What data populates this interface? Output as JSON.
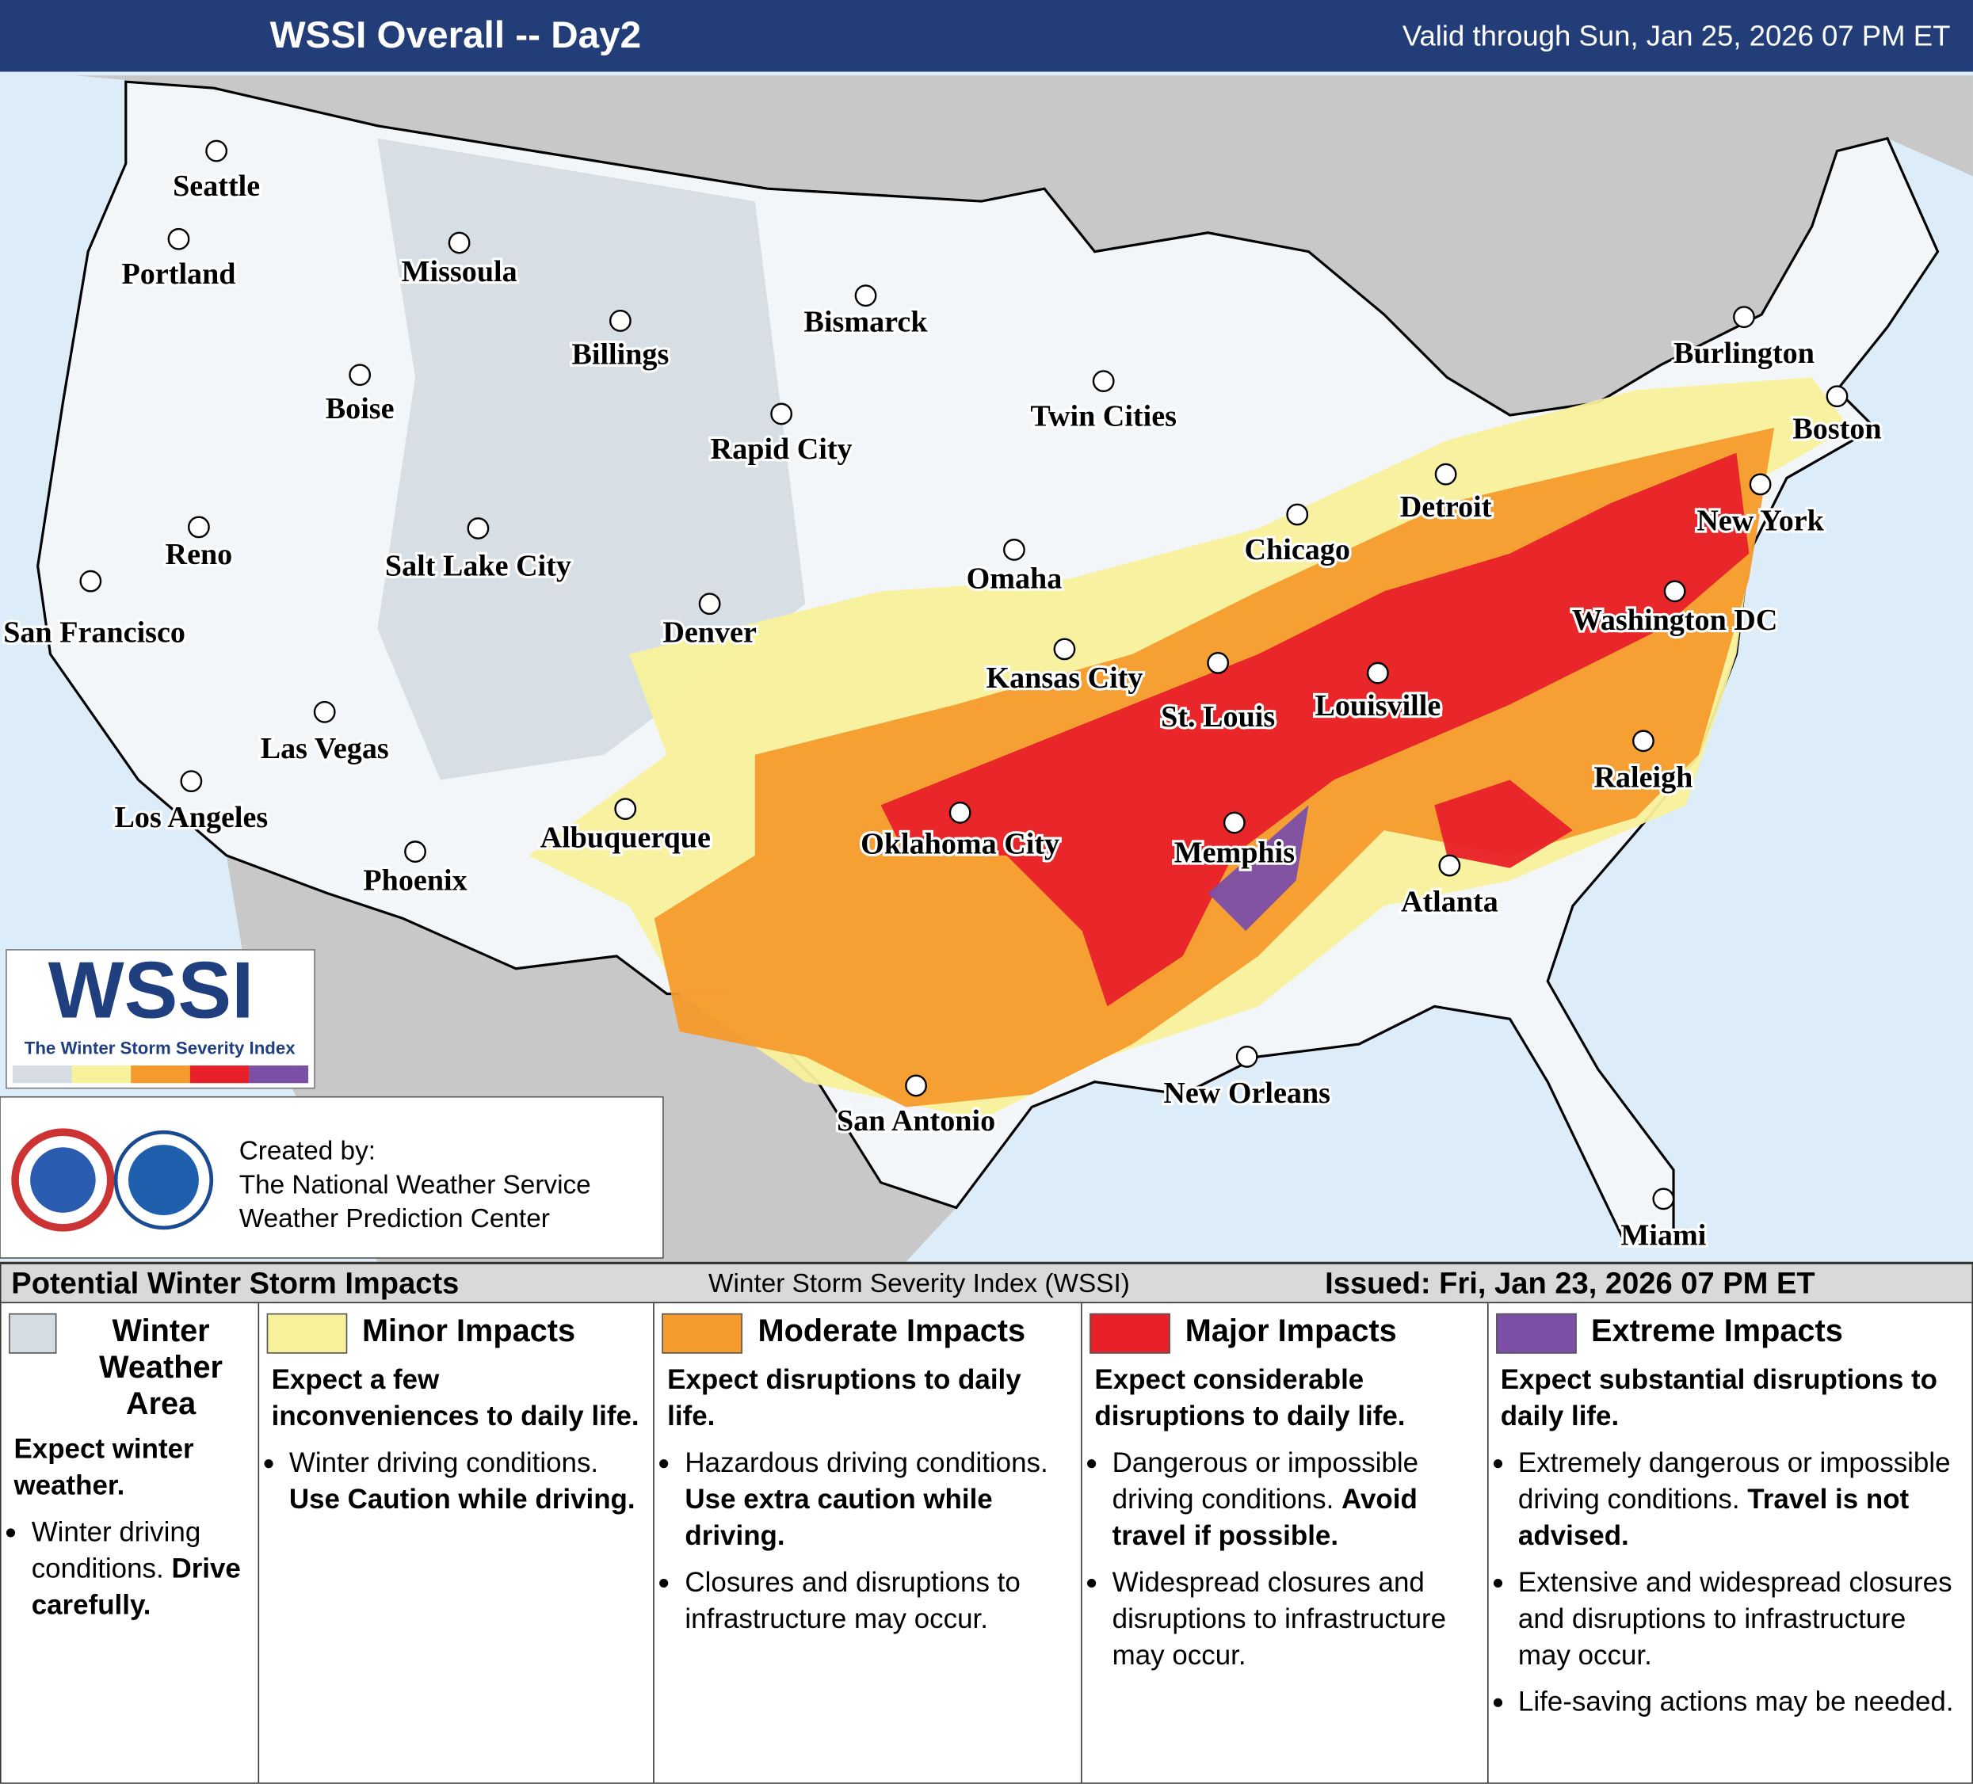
{
  "header": {
    "title": "WSSI Overall -- Day2",
    "valid": "Valid through Sun, Jan 25, 2026 07 PM ET"
  },
  "cities": [
    {
      "label": "Seattle"
    },
    {
      "label": "Portland"
    },
    {
      "label": "Missoula"
    },
    {
      "label": "Billings"
    },
    {
      "label": "Bismarck"
    },
    {
      "label": "Boise"
    },
    {
      "label": "Rapid City"
    },
    {
      "label": "Twin Cities"
    },
    {
      "label": "Burlington"
    },
    {
      "label": "Boston"
    },
    {
      "label": "Detroit"
    },
    {
      "label": "Chicago"
    },
    {
      "label": "New York"
    },
    {
      "label": "Reno"
    },
    {
      "label": "Salt Lake City"
    },
    {
      "label": "Omaha"
    },
    {
      "label": "San Francisco"
    },
    {
      "label": "Denver"
    },
    {
      "label": "Washington DC"
    },
    {
      "label": "Kansas City"
    },
    {
      "label": "St. Louis"
    },
    {
      "label": "Louisville"
    },
    {
      "label": "Las Vegas"
    },
    {
      "label": "Raleigh"
    },
    {
      "label": "Los Angeles"
    },
    {
      "label": "Albuquerque"
    },
    {
      "label": "Oklahoma City"
    },
    {
      "label": "Memphis"
    },
    {
      "label": "Phoenix"
    },
    {
      "label": "Atlanta"
    },
    {
      "label": "New Orleans"
    },
    {
      "label": "San Antonio"
    },
    {
      "label": "Miami"
    }
  ],
  "logo": {
    "title": "WSSI",
    "subtitle": "The Winter Storm Severity Index"
  },
  "credits": {
    "lines": [
      "Created by:",
      "The National Weather Service",
      "Weather Prediction Center"
    ]
  },
  "legend": {
    "title": "Potential Winter Storm Impacts",
    "index_name": "Winter Storm Severity Index (WSSI)",
    "issued": "Issued: Fri, Jan 23, 2026 07 PM ET",
    "categories": [
      {
        "name": "Winter Weather Area",
        "color": "#d5dde3",
        "summary": "Expect winter weather.",
        "bullets": [
          {
            "text": "Winter driving conditions.",
            "bold": "Drive carefully."
          }
        ]
      },
      {
        "name": "Minor Impacts",
        "color": "#f8f19b",
        "summary": "Expect a few inconveniences to daily life.",
        "bullets": [
          {
            "text": "Winter driving conditions.",
            "bold": "Use Caution while driving."
          }
        ]
      },
      {
        "name": "Moderate Impacts",
        "color": "#f59a2c",
        "summary": "Expect disruptions to daily life.",
        "bullets": [
          {
            "text": "Hazardous driving conditions.",
            "bold": "Use extra caution while driving."
          },
          {
            "text": "Closures and disruptions to infrastructure may occur."
          }
        ]
      },
      {
        "name": "Major Impacts",
        "color": "#e8202a",
        "summary": "Expect considerable disruptions to daily life.",
        "bullets": [
          {
            "text": "Dangerous or impossible driving conditions.",
            "bold": "Avoid travel if possible."
          },
          {
            "text": "Widespread closures and disruptions to infrastructure may occur."
          }
        ]
      },
      {
        "name": "Extreme Impacts",
        "color": "#7b4fa6",
        "summary": "Expect substantial disruptions to daily life.",
        "bullets": [
          {
            "text": "Extremely dangerous or impossible driving conditions.",
            "bold": "Travel is not advised."
          },
          {
            "text": "Extensive and widespread closures and disruptions to infrastructure may occur."
          },
          {
            "text": "Life-saving actions may be needed."
          }
        ]
      }
    ]
  }
}
